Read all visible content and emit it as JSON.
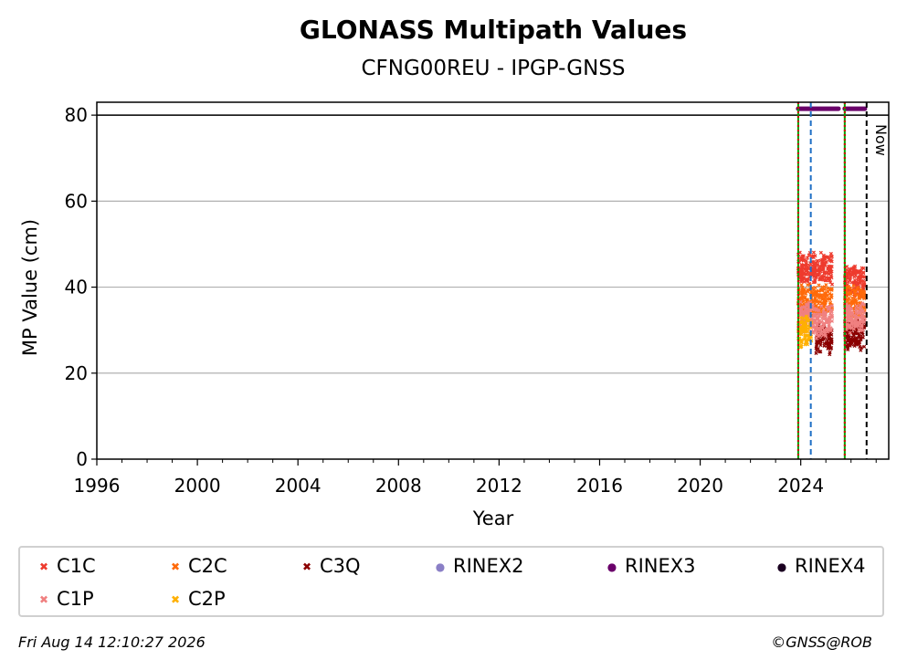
{
  "chart_data": {
    "type": "scatter",
    "title": "GLONASS Multipath Values",
    "subtitle": "CFNG00REU - IPGP-GNSS",
    "xlabel": "Year",
    "ylabel": "MP Value (cm)",
    "xlim": [
      1996,
      2027.5
    ],
    "ylim": [
      0,
      83
    ],
    "x_ticks": [
      "1996",
      "2000",
      "2004",
      "2008",
      "2012",
      "2016",
      "2020",
      "2024"
    ],
    "y_ticks": [
      "0",
      "20",
      "40",
      "60",
      "80"
    ],
    "grid": "horizontal",
    "legend_position": "bottom",
    "series": [
      {
        "name": "C1C",
        "color": "#ee3b2e",
        "marker": "x",
        "segments": [
          {
            "x": [
              2023.9,
              2025.25
            ],
            "y": 44.5
          },
          {
            "x": [
              2025.75,
              2026.55
            ],
            "y": 41.5
          }
        ]
      },
      {
        "name": "C2C",
        "color": "#ff6a0a",
        "marker": "x",
        "segments": [
          {
            "x": [
              2023.9,
              2025.25
            ],
            "y": 37
          },
          {
            "x": [
              2025.75,
              2026.55
            ],
            "y": 36.5
          }
        ]
      },
      {
        "name": "C3Q",
        "color": "#8b0000",
        "marker": "x",
        "segments": [
          {
            "x": [
              2024.6,
              2025.25
            ],
            "y": 28
          },
          {
            "x": [
              2025.75,
              2026.55
            ],
            "y": 29
          }
        ]
      },
      {
        "name": "C1P",
        "color": "#f08080",
        "marker": "x",
        "segments": [
          {
            "x": [
              2023.9,
              2024.5
            ],
            "y": 33
          },
          {
            "x": [
              2024.5,
              2025.25
            ],
            "y": 32
          },
          {
            "x": [
              2025.75,
              2026.55
            ],
            "y": 33
          }
        ]
      },
      {
        "name": "C2P",
        "color": "#ffb000",
        "marker": "x",
        "segments": [
          {
            "x": [
              2023.9,
              2024.45
            ],
            "y": 29.5
          }
        ]
      },
      {
        "name": "RINEX2",
        "color": "#8a7fc6",
        "marker": "dot",
        "segments": []
      },
      {
        "name": "RINEX3",
        "color": "#6a006a",
        "marker": "dot",
        "segments": [
          {
            "x": [
              2023.9,
              2025.5
            ],
            "y": 81.5
          },
          {
            "x": [
              2025.75,
              2026.55
            ],
            "y": 81.5
          }
        ]
      },
      {
        "name": "RINEX4",
        "color": "#1a0020",
        "marker": "dot",
        "segments": []
      }
    ],
    "reference_line_y": 80,
    "vlines": [
      {
        "x": 2023.9,
        "color": "#00a000",
        "style": "solid"
      },
      {
        "x": 2023.9,
        "color": "#d00000",
        "style": "dotted"
      },
      {
        "x": 2024.4,
        "color": "#1f6fc5",
        "style": "dashed"
      },
      {
        "x": 2025.75,
        "color": "#00a000",
        "style": "solid"
      },
      {
        "x": 2025.75,
        "color": "#d00000",
        "style": "dotted"
      },
      {
        "x": 2026.62,
        "color": "#000000",
        "style": "dashed"
      }
    ],
    "now_label": "Now"
  },
  "legend": [
    {
      "label": "C1C",
      "color": "#ee3b2e",
      "symbol": "✖"
    },
    {
      "label": "C2C",
      "color": "#ff6a0a",
      "symbol": "✖"
    },
    {
      "label": "C3Q",
      "color": "#8b0000",
      "symbol": "✖"
    },
    {
      "label": "RINEX2",
      "color": "#8a7fc6",
      "symbol": "●"
    },
    {
      "label": "RINEX3",
      "color": "#6a006a",
      "symbol": "●"
    },
    {
      "label": "RINEX4",
      "color": "#1a0020",
      "symbol": "●"
    },
    {
      "label": "C1P",
      "color": "#f08080",
      "symbol": "✖"
    },
    {
      "label": "C2P",
      "color": "#ffb000",
      "symbol": "✖"
    }
  ],
  "footer": {
    "timestamp": "Fri Aug 14 12:10:27 2026",
    "credit": "©GNSS@ROB"
  }
}
